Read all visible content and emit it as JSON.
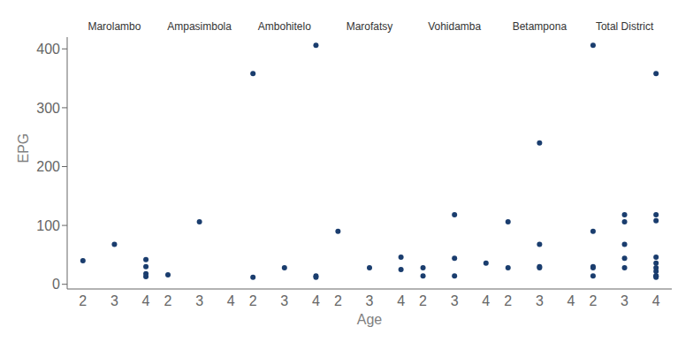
{
  "chart_data": {
    "type": "scatter",
    "xlabel": "Age",
    "ylabel": "EPG",
    "color": "#1a3d6e",
    "ylim": [
      -8,
      420
    ],
    "yticks": [
      0,
      100,
      200,
      300,
      400
    ],
    "grid": false,
    "categories": [
      "2",
      "3",
      "4"
    ],
    "series": [
      {
        "name": "Marolambo",
        "values": [
          [
            40
          ],
          [
            68
          ],
          [
            42,
            30,
            18,
            13
          ]
        ]
      },
      {
        "name": "Ampasimbola",
        "values": [
          [
            16
          ],
          [
            106
          ],
          []
        ]
      },
      {
        "name": "Ambohitelo",
        "values": [
          [
            358,
            12
          ],
          [
            28
          ],
          [
            406,
            14,
            12
          ]
        ]
      },
      {
        "name": "Marofatsy",
        "values": [
          [
            90
          ],
          [
            28
          ],
          [
            46,
            25
          ]
        ]
      },
      {
        "name": "Vohidamba",
        "values": [
          [
            28,
            14
          ],
          [
            118,
            44,
            14
          ],
          [
            36
          ]
        ]
      },
      {
        "name": "Betampona",
        "values": [
          [
            28,
            106
          ],
          [
            240,
            68,
            30,
            28
          ],
          []
        ]
      },
      {
        "name": "Total District",
        "values": [
          [
            406,
            90,
            30,
            28,
            14
          ],
          [
            118,
            106,
            68,
            44,
            28
          ],
          [
            358,
            118,
            108,
            46,
            36,
            28,
            22,
            14,
            14,
            12
          ]
        ]
      }
    ]
  }
}
